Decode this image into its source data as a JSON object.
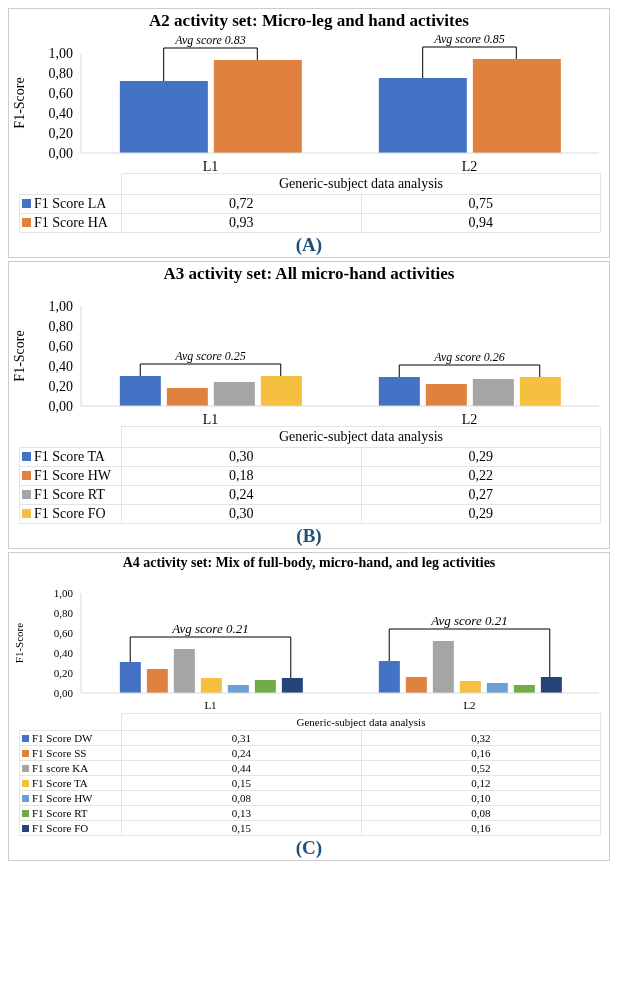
{
  "chart_data": [
    {
      "type": "bar",
      "title": "A2 activity set: Micro-leg and hand activites",
      "ylabel": "F1-Score",
      "xlabel": "Generic-subject data analysis",
      "categories": [
        "L1",
        "L2"
      ],
      "ylim": [
        0,
        1
      ],
      "yticks": [
        {
          "value": 0,
          "label": "0,00"
        },
        {
          "value": 0.2,
          "label": "0,20"
        },
        {
          "value": 0.4,
          "label": "0,40"
        },
        {
          "value": 0.6,
          "label": "0,60"
        },
        {
          "value": 0.8,
          "label": "0,80"
        },
        {
          "value": 1,
          "label": "1,00"
        }
      ],
      "legend": "bottom",
      "series": [
        {
          "name": "F1 Score LA",
          "color": "#4472c4",
          "values": [
            0.72,
            0.75
          ],
          "value_labels": [
            "0,72",
            "0,75"
          ]
        },
        {
          "name": "F1 Score HA",
          "color": "#e0813f",
          "values": [
            0.93,
            0.94
          ],
          "value_labels": [
            "0,93",
            "0,94"
          ]
        }
      ],
      "annotations": [
        "Avg score 0.83",
        "Avg score 0.85",
        "(A)"
      ]
    },
    {
      "type": "bar",
      "title": "A3 activity set: All micro-hand activities",
      "ylabel": "F1-Score",
      "xlabel": "Generic-subject data analysis",
      "categories": [
        "L1",
        "L2"
      ],
      "ylim": [
        0,
        1
      ],
      "yticks": [
        {
          "value": 0,
          "label": "0,00"
        },
        {
          "value": 0.2,
          "label": "0,20"
        },
        {
          "value": 0.4,
          "label": "0,40"
        },
        {
          "value": 0.6,
          "label": "0,60"
        },
        {
          "value": 0.8,
          "label": "0,80"
        },
        {
          "value": 1,
          "label": "1,00"
        }
      ],
      "legend": "bottom",
      "series": [
        {
          "name": "F1 Score TA",
          "color": "#4472c4",
          "values": [
            0.3,
            0.29
          ],
          "value_labels": [
            "0,30",
            "0,29"
          ]
        },
        {
          "name": "F1 Score HW",
          "color": "#e0813f",
          "values": [
            0.18,
            0.22
          ],
          "value_labels": [
            "0,18",
            "0,22"
          ]
        },
        {
          "name": "F1 Score RT",
          "color": "#a5a5a5",
          "values": [
            0.24,
            0.27
          ],
          "value_labels": [
            "0,24",
            "0,27"
          ]
        },
        {
          "name": "F1 Score FO",
          "color": "#f5bf40",
          "values": [
            0.3,
            0.29
          ],
          "value_labels": [
            "0,30",
            "0,29"
          ]
        }
      ],
      "annotations": [
        "Avg score 0.25",
        "Avg score 0.26",
        "(B)"
      ]
    },
    {
      "type": "bar",
      "title": "A4 activity set: Mix of full-body, micro-hand, and leg activities",
      "ylabel": "F1-Score",
      "xlabel": "Generic-subject data analysis",
      "categories": [
        "L1",
        "L2"
      ],
      "ylim": [
        0,
        1
      ],
      "yticks": [
        {
          "value": 0,
          "label": "0,00"
        },
        {
          "value": 0.2,
          "label": "0,20"
        },
        {
          "value": 0.4,
          "label": "0,40"
        },
        {
          "value": 0.6,
          "label": "0,60"
        },
        {
          "value": 0.8,
          "label": "0,80"
        },
        {
          "value": 1,
          "label": "1,00"
        }
      ],
      "legend": "bottom",
      "series": [
        {
          "name": "F1 Score DW",
          "color": "#4472c4",
          "values": [
            0.31,
            0.32
          ],
          "value_labels": [
            "0,31",
            "0,32"
          ]
        },
        {
          "name": "F1 Score SS",
          "color": "#e0813f",
          "values": [
            0.24,
            0.16
          ],
          "value_labels": [
            "0,24",
            "0,16"
          ]
        },
        {
          "name": "F1 score KA",
          "color": "#a5a5a5",
          "values": [
            0.44,
            0.52
          ],
          "value_labels": [
            "0,44",
            "0,52"
          ]
        },
        {
          "name": "F1 Score TA",
          "color": "#f5bf40",
          "values": [
            0.15,
            0.12
          ],
          "value_labels": [
            "0,15",
            "0,12"
          ]
        },
        {
          "name": "F1 Score HW",
          "color": "#6a9fd8",
          "values": [
            0.08,
            0.1
          ],
          "value_labels": [
            "0,08",
            "0,10"
          ]
        },
        {
          "name": "F1 Score RT",
          "color": "#70ad47",
          "values": [
            0.13,
            0.08
          ],
          "value_labels": [
            "0,13",
            "0,08"
          ]
        },
        {
          "name": "F1 Score FO",
          "color": "#264478",
          "values": [
            0.15,
            0.16
          ],
          "value_labels": [
            "0,15",
            "0,16"
          ]
        }
      ],
      "annotations": [
        "Avg score 0.21",
        "Avg score 0.21",
        "(C)"
      ]
    }
  ]
}
